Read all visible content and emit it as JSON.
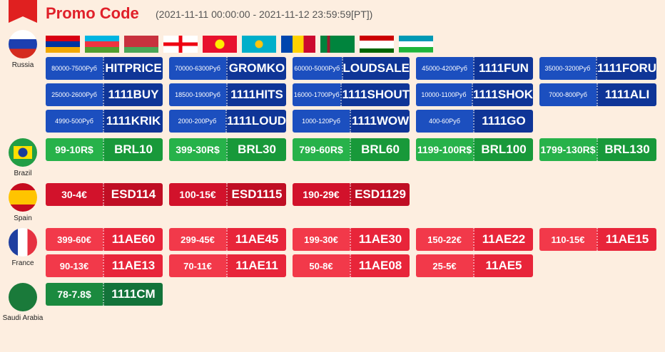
{
  "header": {
    "title": "Promo Code",
    "subtitle": "(2021-11-11 00:00:00 - 2021-11-12 23:59:59[PT])"
  },
  "regions": [
    {
      "name": "Russia",
      "coupons": [
        {
          "label": "80000-7500Руб",
          "code": "HITPRICE"
        },
        {
          "label": "70000-6300Руб",
          "code": "GROMKO"
        },
        {
          "label": "60000-5000Руб",
          "code": "LOUDSALE"
        },
        {
          "label": "45000-4200Руб",
          "code": "1111FUN"
        },
        {
          "label": "35000-3200Руб",
          "code": "1111FORU"
        },
        {
          "label": "25000-2600Руб",
          "code": "1111BUY"
        },
        {
          "label": "18500-1900Руб",
          "code": "1111HITS"
        },
        {
          "label": "16000-1700Руб",
          "code": "1111SHOUT"
        },
        {
          "label": "10000-1100Руб",
          "code": "1111SHOK"
        },
        {
          "label": "7000-800Руб",
          "code": "1111ALI"
        },
        {
          "label": "4990-500Руб",
          "code": "1111KRIK"
        },
        {
          "label": "2000-200Руб",
          "code": "1111LOUD"
        },
        {
          "label": "1000-120Руб",
          "code": "1111WOW"
        },
        {
          "label": "400-60Руб",
          "code": "1111GO"
        }
      ]
    },
    {
      "name": "Brazil",
      "coupons": [
        {
          "label": "99-10R$",
          "code": "BRL10"
        },
        {
          "label": "399-30R$",
          "code": "BRL30"
        },
        {
          "label": "799-60R$",
          "code": "BRL60"
        },
        {
          "label": "1199-100R$",
          "code": "BRL100"
        },
        {
          "label": "1799-130R$",
          "code": "BRL130"
        }
      ]
    },
    {
      "name": "Spain",
      "coupons": [
        {
          "label": "30-4€",
          "code": "ESD114"
        },
        {
          "label": "100-15€",
          "code": "ESD1115"
        },
        {
          "label": "190-29€",
          "code": "ESD1129"
        }
      ]
    },
    {
      "name": "France",
      "coupons": [
        {
          "label": "399-60€",
          "code": "11AE60"
        },
        {
          "label": "299-45€",
          "code": "11AE45"
        },
        {
          "label": "199-30€",
          "code": "11AE30"
        },
        {
          "label": "150-22€",
          "code": "11AE22"
        },
        {
          "label": "110-15€",
          "code": "11AE15"
        },
        {
          "label": "90-13€",
          "code": "11AE13"
        },
        {
          "label": "70-11€",
          "code": "11AE11"
        },
        {
          "label": "50-8€",
          "code": "11AE08"
        },
        {
          "label": "25-5€",
          "code": "11AE5"
        }
      ]
    },
    {
      "name": "Saudi Arabia",
      "coupons": [
        {
          "label": "78-7.8$",
          "code": "1111CM"
        }
      ]
    }
  ]
}
